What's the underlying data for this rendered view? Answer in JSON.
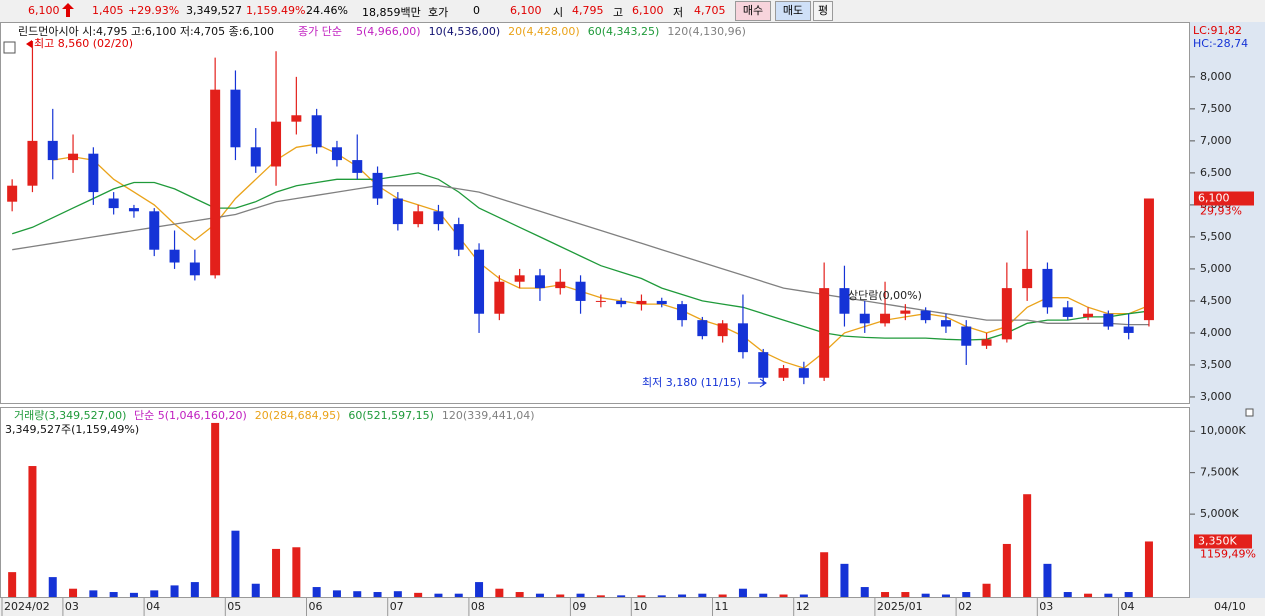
{
  "header": {
    "price": "6,100",
    "change": "1,405",
    "rate": "+29.93%",
    "volume": "3,349,527",
    "volume_rate": "1,159.49%",
    "turnover": "24.46%",
    "amount": "18,859백만",
    "quote_label": "호가",
    "quote": "0",
    "quote_price": "6,100",
    "open_label": "시",
    "open": "4,795",
    "high_label": "고",
    "high": "6,100",
    "low_label": "저",
    "low": "4,705",
    "buy": "매수",
    "sell": "매도",
    "avg": "평"
  },
  "chart_data": [
    {
      "type": "candlestick",
      "title": "린드먼아시아 시:4,795 고:6,100 저:4,705 종:6,100",
      "ma_label": "종가 단순",
      "up_color": "#e3201b",
      "down_color": "#1533d6",
      "open": [
        6050,
        6300,
        7000,
        6700,
        6800,
        6100,
        5950,
        5900,
        5300,
        5100,
        4900,
        7800,
        6900,
        6600,
        7300,
        7400,
        6900,
        6700,
        6500,
        6100,
        5700,
        5900,
        5700,
        5300,
        4300,
        4800,
        4900,
        4700,
        4800,
        4500,
        4500,
        4450,
        4500,
        4450,
        4200,
        3950,
        4150,
        3700,
        3300,
        3450,
        3300,
        4700,
        4300,
        4150,
        4300,
        4350,
        4200,
        4100,
        3800,
        3900,
        4700,
        5000,
        4400,
        4250,
        4300,
        4100,
        4200
      ],
      "high": [
        6400,
        8560,
        7500,
        7100,
        6900,
        6200,
        6000,
        5950,
        5600,
        5300,
        8300,
        8100,
        7200,
        8400,
        8000,
        7500,
        7000,
        7100,
        6600,
        6200,
        6000,
        6000,
        5800,
        5400,
        4900,
        5000,
        5000,
        5000,
        4900,
        4600,
        4550,
        4600,
        4550,
        4500,
        4250,
        4200,
        4600,
        3750,
        3500,
        3550,
        5100,
        5050,
        4500,
        4800,
        4450,
        4400,
        4300,
        4200,
        4000,
        5100,
        5600,
        5100,
        4500,
        4400,
        4350,
        4300,
        6100
      ],
      "low": [
        5900,
        6200,
        6400,
        6500,
        6000,
        5850,
        5800,
        5200,
        5000,
        4820,
        4850,
        6700,
        6500,
        6300,
        7100,
        6800,
        6600,
        6400,
        6000,
        5600,
        5650,
        5600,
        5200,
        4000,
        4200,
        4700,
        4500,
        4600,
        4300,
        4400,
        4400,
        4350,
        4400,
        4100,
        3900,
        3850,
        3600,
        3180,
        3250,
        3200,
        3250,
        4100,
        4000,
        4100,
        4200,
        4150,
        4000,
        3500,
        3750,
        3850,
        4500,
        4300,
        4200,
        4200,
        4050,
        3900,
        4100
      ],
      "close": [
        6300,
        7000,
        6700,
        6800,
        6200,
        5950,
        5900,
        5300,
        5100,
        4900,
        7800,
        6900,
        6600,
        7300,
        7400,
        6900,
        6700,
        6500,
        6100,
        5700,
        5900,
        5700,
        5300,
        4300,
        4800,
        4900,
        4700,
        4800,
        4500,
        4500,
        4450,
        4500,
        4450,
        4200,
        3950,
        4150,
        3700,
        3300,
        3450,
        3300,
        4700,
        4300,
        4150,
        4300,
        4350,
        4200,
        4100,
        3800,
        3900,
        4700,
        5000,
        4400,
        4250,
        4300,
        4100,
        4000,
        6100
      ],
      "indicator_labels": [
        {
          "name": "5(4,966,00)",
          "color": "#c020c0"
        },
        {
          "name": "10(4,536,00)",
          "color": "#101070"
        }
      ],
      "series": [
        {
          "name": "20(4,428,00)",
          "color": "#eaa31a",
          "values": [
            null,
            null,
            6700,
            6750,
            6700,
            6400,
            6200,
            6000,
            5700,
            5450,
            5700,
            6100,
            6400,
            6700,
            6900,
            6950,
            6800,
            6600,
            6300,
            6100,
            6000,
            5900,
            5500,
            5100,
            4850,
            4700,
            4700,
            4750,
            4650,
            4550,
            4500,
            4450,
            4450,
            4350,
            4200,
            4100,
            3950,
            3700,
            3550,
            3450,
            3700,
            4000,
            4100,
            4200,
            4250,
            4300,
            4250,
            4100,
            4000,
            4100,
            4400,
            4550,
            4550,
            4400,
            4300,
            4300,
            4428
          ]
        },
        {
          "name": "60(4,343,25)",
          "color": "#1f9a3a",
          "values": [
            5550,
            5650,
            5800,
            5950,
            6100,
            6250,
            6350,
            6350,
            6250,
            6100,
            5950,
            5950,
            6050,
            6200,
            6300,
            6350,
            6400,
            6400,
            6400,
            6450,
            6500,
            6400,
            6200,
            5950,
            5800,
            5650,
            5500,
            5350,
            5200,
            5050,
            4950,
            4850,
            4700,
            4600,
            4500,
            4450,
            4400,
            4300,
            4200,
            4100,
            4000,
            3950,
            3930,
            3920,
            3920,
            3920,
            3900,
            3890,
            3900,
            4000,
            4150,
            4200,
            4200,
            4250,
            4250,
            4300,
            4343.25
          ]
        },
        {
          "name": "120(4,130,96)",
          "color": "#808080",
          "values": [
            5300,
            5350,
            5400,
            5450,
            5500,
            5550,
            5600,
            5650,
            5700,
            5750,
            5800,
            5850,
            5950,
            6050,
            6100,
            6150,
            6200,
            6250,
            6300,
            6300,
            6300,
            6300,
            6250,
            6200,
            6100,
            6000,
            5900,
            5800,
            5700,
            5600,
            5500,
            5400,
            5300,
            5200,
            5100,
            5000,
            4900,
            4800,
            4700,
            4650,
            4600,
            4550,
            4500,
            4450,
            4400,
            4350,
            4300,
            4250,
            4200,
            4200,
            4200,
            4150,
            4150,
            4150,
            4150,
            4130,
            4130.96
          ]
        }
      ],
      "ylim": [
        2890,
        8810
      ],
      "yticks": [
        {
          "value": 3000,
          "label": "3,000"
        },
        {
          "value": 3500,
          "label": "3,500"
        },
        {
          "value": 4000,
          "label": "4,000"
        },
        {
          "value": 4500,
          "label": "4,500"
        },
        {
          "value": 5000,
          "label": "5,000"
        },
        {
          "value": 5500,
          "label": "5,500"
        },
        {
          "value": 6000,
          "label": "6,000"
        },
        {
          "value": 6500,
          "label": "6,500"
        },
        {
          "value": 7000,
          "label": "7,000"
        },
        {
          "value": 7500,
          "label": "7,500"
        },
        {
          "value": 8000,
          "label": "8,000"
        }
      ],
      "annotations": [
        "최고 8,560 (02/20)",
        "최저 3,180 (11/15)",
        "상단람(0,00%)"
      ],
      "last_price_label": "6,100",
      "last_rate_label": "29,93%",
      "lc": "LC:91,82",
      "hc": "HC:-28,74"
    },
    {
      "type": "bar",
      "title": "거래량(3,349,527,00)",
      "summary": "3,349,527주(1,159,49%)",
      "values": [
        1500,
        7900,
        1200,
        500,
        400,
        300,
        250,
        400,
        700,
        900,
        10500,
        4000,
        800,
        2900,
        3000,
        600,
        400,
        350,
        300,
        350,
        250,
        200,
        200,
        900,
        500,
        300,
        200,
        150,
        200,
        100,
        100,
        100,
        100,
        150,
        200,
        150,
        500,
        200,
        150,
        150,
        2700,
        2000,
        600,
        300,
        300,
        200,
        150,
        300,
        800,
        3200,
        6200,
        2000,
        300,
        200,
        200,
        300,
        3350
      ],
      "categories": [
        "2024/02",
        null,
        null,
        "03",
        null,
        null,
        null,
        "04",
        null,
        null,
        null,
        "05",
        null,
        null,
        null,
        "06",
        null,
        null,
        null,
        "07",
        null,
        null,
        null,
        "08",
        null,
        null,
        null,
        null,
        "09",
        null,
        null,
        "10",
        null,
        null,
        null,
        "11",
        null,
        null,
        null,
        "12",
        null,
        null,
        null,
        "2025/01",
        null,
        null,
        null,
        "02",
        null,
        null,
        null,
        "03",
        null,
        null,
        null,
        "04",
        null
      ],
      "end_date": "04/10",
      "indicator_labels": [
        {
          "name": "단순 5(1,046,160,20)",
          "color": "#c020c0"
        },
        {
          "name": "20(284,684,95)",
          "color": "#eaa31a"
        },
        {
          "name": "60(521,597,15)",
          "color": "#1f9a3a"
        },
        {
          "name": "120(339,441,04)",
          "color": "#808080"
        }
      ],
      "ylim": [
        0,
        11280
      ],
      "yticks": [
        {
          "value": 5000,
          "label": "5,000K"
        },
        {
          "value": 7500,
          "label": "7,500K"
        },
        {
          "value": 10000,
          "label": "10,000K"
        }
      ],
      "last_label": "3,350K",
      "last_rate_label": "1159,49%"
    }
  ]
}
